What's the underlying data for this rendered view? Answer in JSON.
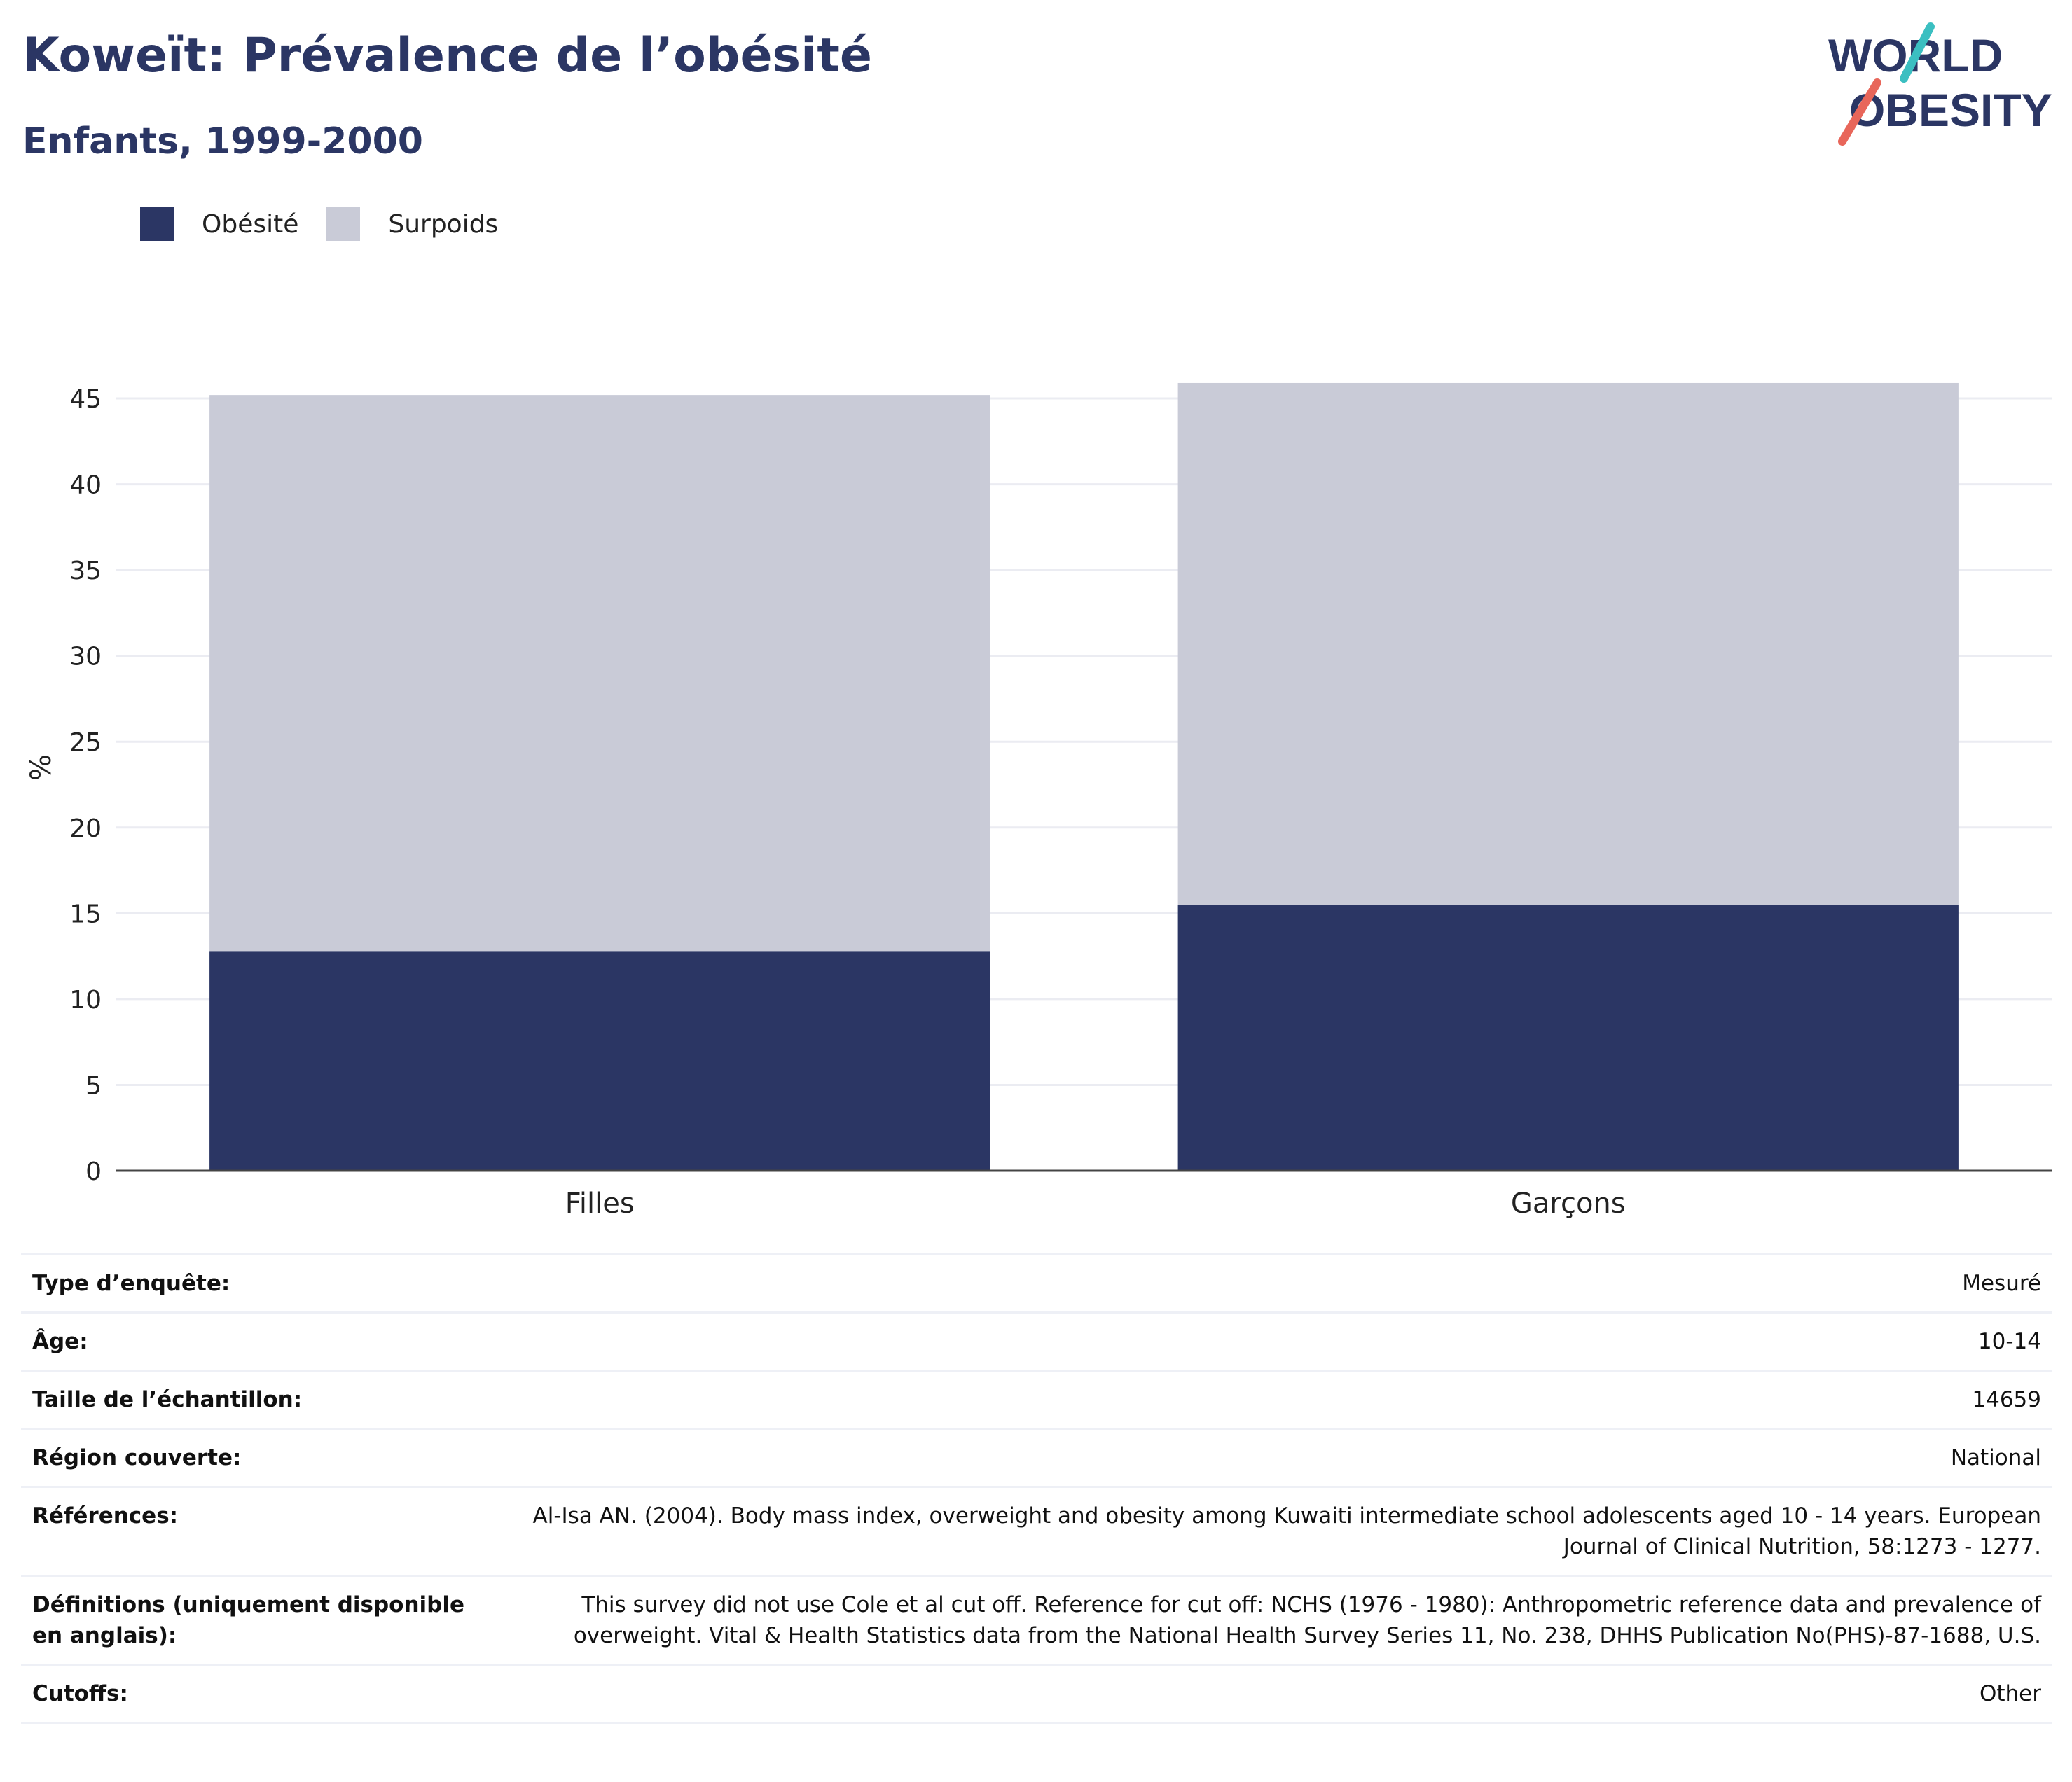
{
  "header": {
    "title": "Koweït: Prévalence de l’obésité",
    "subtitle": "Enfants, 1999-2000"
  },
  "logo": {
    "line1": "WORLD",
    "line2": "OBESITY"
  },
  "legend": [
    {
      "label": "Obésité",
      "color": "#2b3664"
    },
    {
      "label": "Surpoids",
      "color": "#c9cbd7"
    }
  ],
  "chart_data": {
    "type": "bar",
    "stacked": true,
    "categories": [
      "Filles",
      "Garçons"
    ],
    "series": [
      {
        "name": "Obésité",
        "values": [
          12.8,
          15.5
        ],
        "color": "#2b3664"
      },
      {
        "name": "Surpoids",
        "values": [
          32.4,
          30.4
        ],
        "color": "#c9cbd7"
      }
    ],
    "ylabel": "%",
    "xlabel": "",
    "ylim": [
      0,
      47
    ],
    "yticks": [
      0,
      5,
      10,
      15,
      20,
      25,
      30,
      35,
      40,
      45
    ],
    "grid": true,
    "legend_position": "top-left"
  },
  "metadata": [
    {
      "key": "Type d’enquête:",
      "value": "Mesuré"
    },
    {
      "key": "Âge:",
      "value": "10-14"
    },
    {
      "key": "Taille de l’échantillon:",
      "value": "14659"
    },
    {
      "key": "Région couverte:",
      "value": "National"
    },
    {
      "key": "Références:",
      "value": "Al-Isa AN. (2004). Body mass index, overweight and obesity among Kuwaiti intermediate school adolescents aged 10 - 14 years. European Journal of Clinical Nutrition, 58:1273 - 1277."
    },
    {
      "key": "Définitions (uniquement disponible en anglais):",
      "value": "This survey did not use Cole et al cut off. Reference for cut off: NCHS (1976 - 1980): Anthropometric reference data and prevalence of overweight. Vital & Health Statistics data from the National Health Survey Series 11, No. 238, DHHS Publication No(PHS)-87-1688, U.S."
    },
    {
      "key": "Cutoffs:",
      "value": "Other"
    }
  ]
}
